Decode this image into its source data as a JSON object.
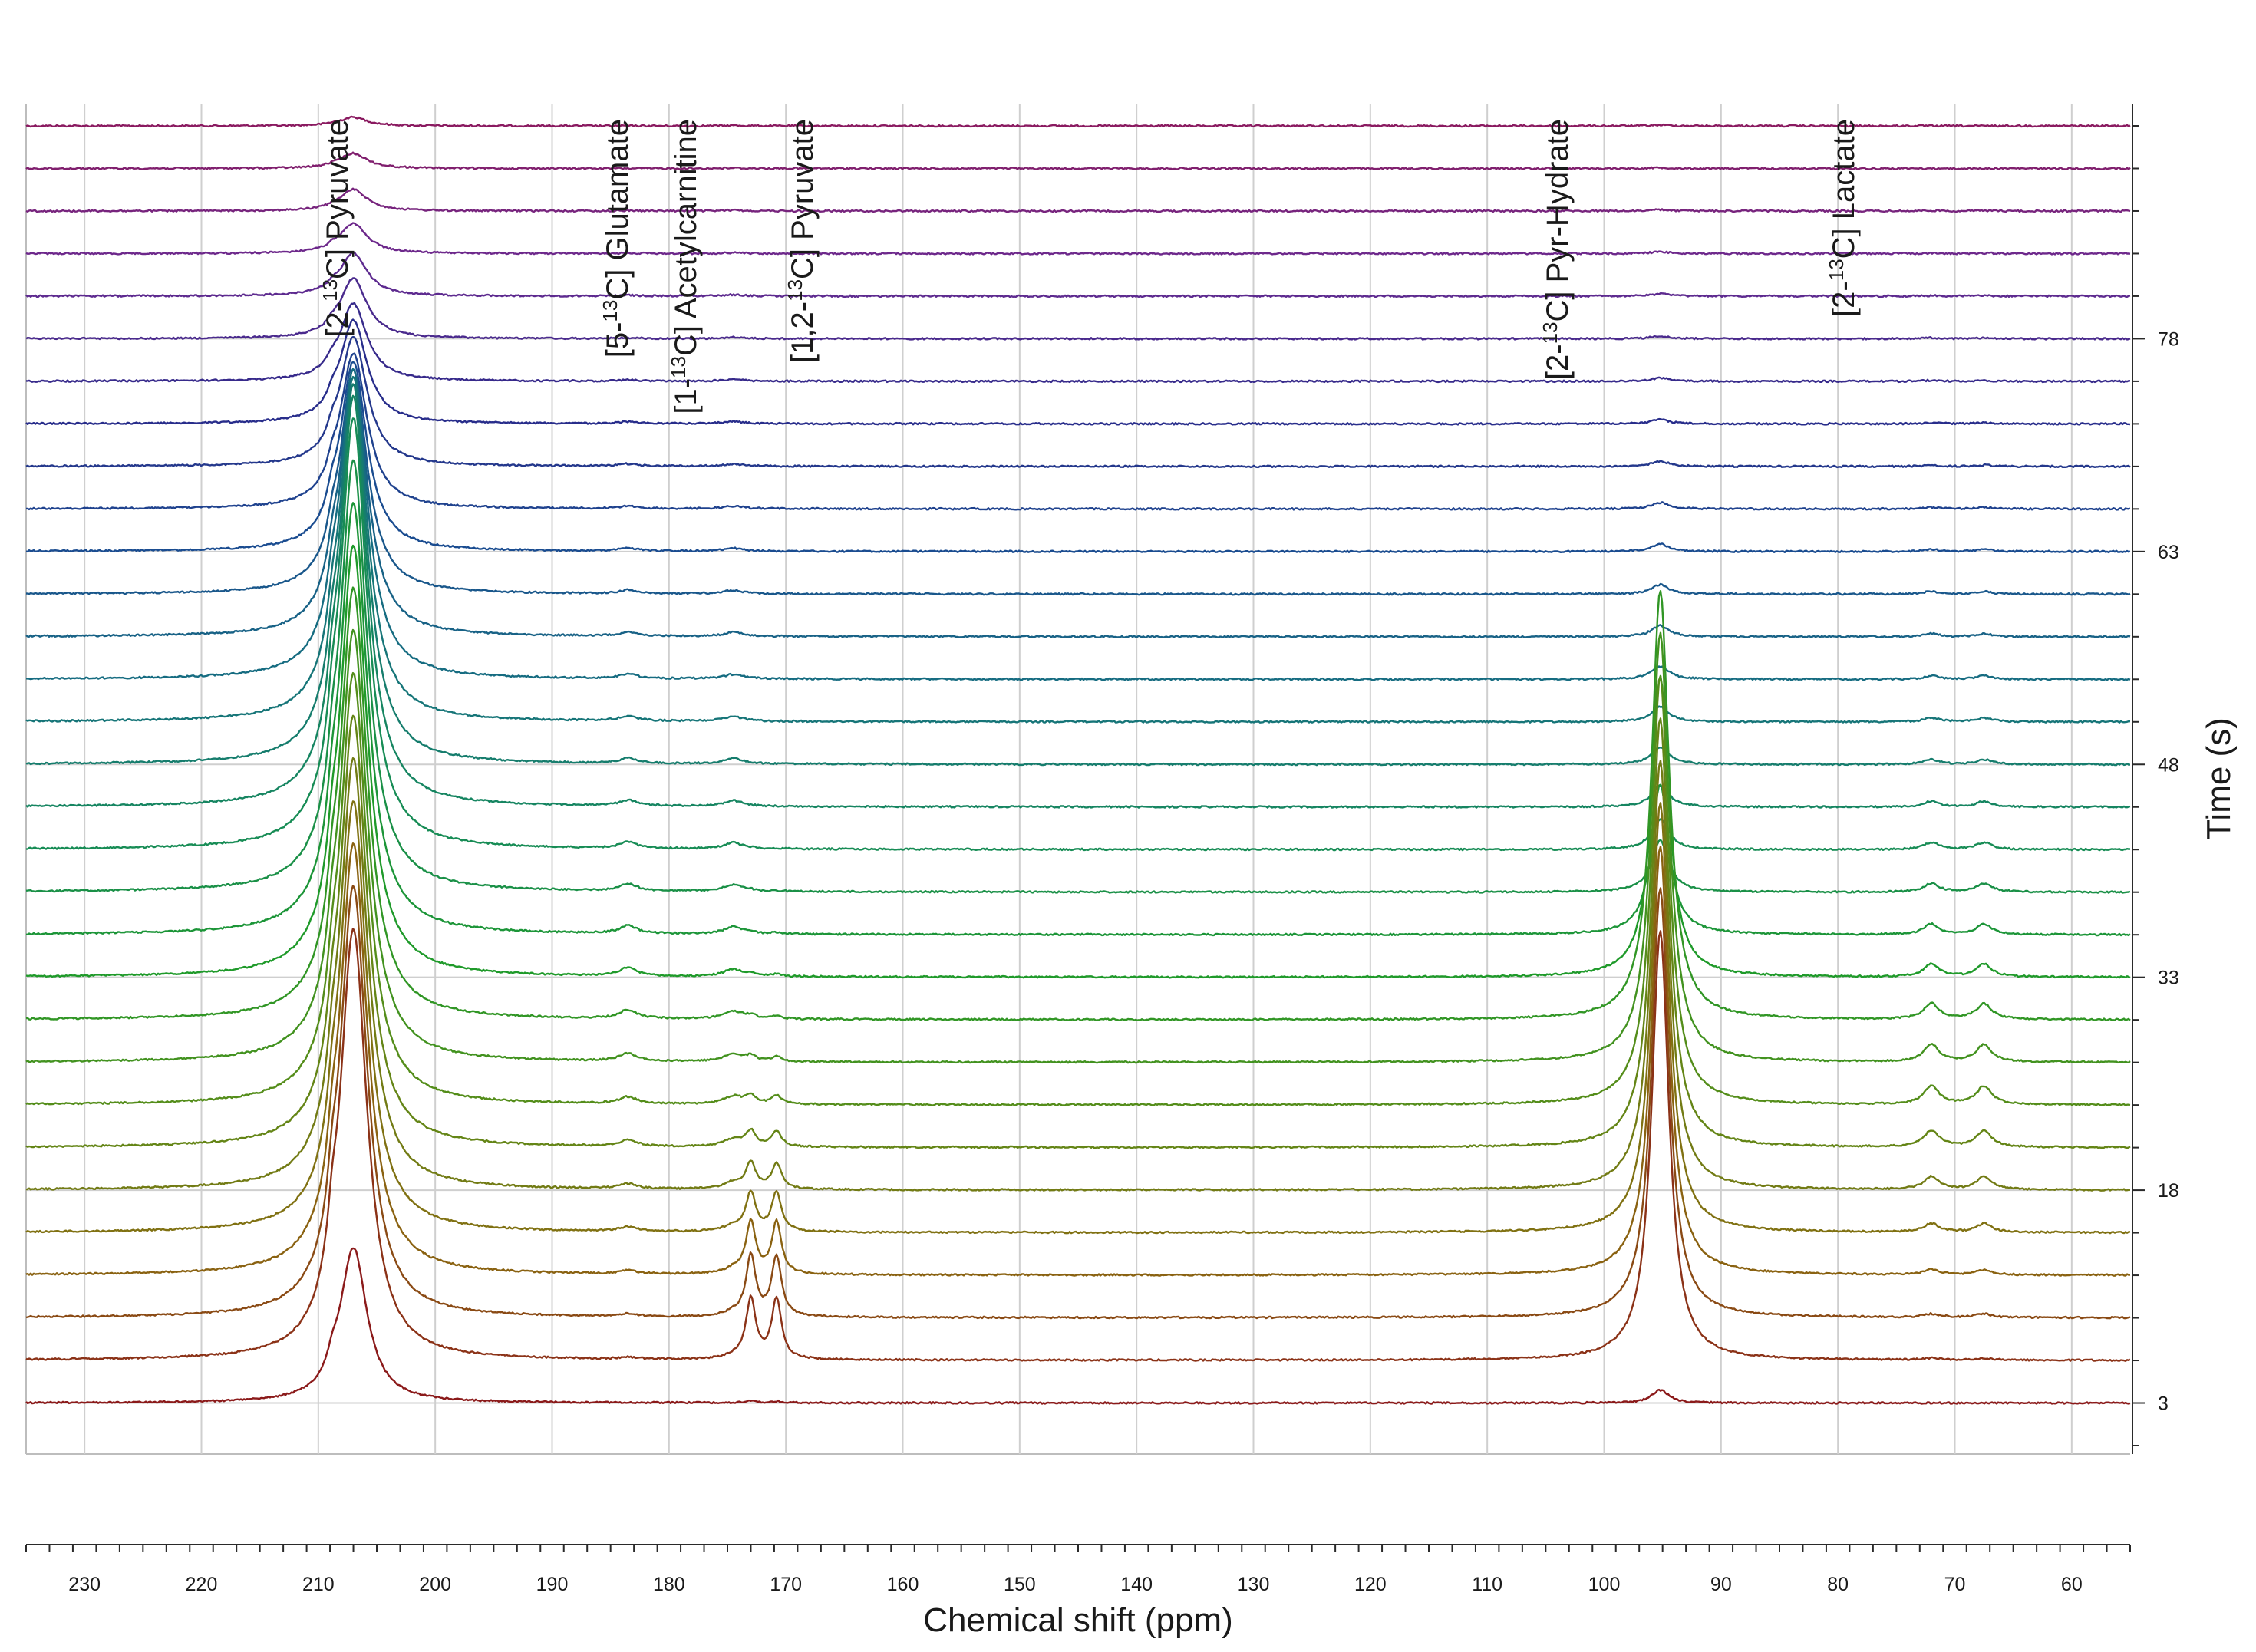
{
  "chart_data": {
    "type": "line",
    "subtype": "stacked-spectra-waterfall",
    "xlabel": "Chemical shift (ppm)",
    "ylabel": "Time (s)",
    "xlim": [
      235,
      55
    ],
    "x_reversed": true,
    "x_ticks": [
      230,
      220,
      210,
      200,
      190,
      180,
      170,
      160,
      150,
      140,
      130,
      120,
      110,
      100,
      90,
      80,
      70,
      60
    ],
    "x_tick_labels": [
      "230",
      "220",
      "210",
      "200",
      "190",
      "180",
      "170",
      "160",
      "150",
      "140",
      "130",
      "120",
      "110",
      "100",
      "90",
      "80",
      "70",
      "60"
    ],
    "ylim": [
      0,
      93
    ],
    "y_ticks": [
      3,
      18,
      33,
      48,
      63,
      78
    ],
    "y_tick_labels": [
      "3",
      "18",
      "33",
      "48",
      "63",
      "78"
    ],
    "grid": true,
    "legend": "none",
    "n_spectra": 31,
    "spectrum_times_s": [
      3,
      6,
      9,
      12,
      15,
      18,
      21,
      24,
      27,
      30,
      33,
      36,
      39,
      42,
      45,
      48,
      51,
      54,
      57,
      60,
      63,
      66,
      69,
      72,
      75,
      78,
      81,
      84,
      87,
      90,
      93
    ],
    "color_scale": {
      "stops": [
        "#8b1a1a",
        "#8a6a10",
        "#5a8c18",
        "#1f9a2a",
        "#168a5a",
        "#16707f",
        "#1a4c90",
        "#2a2a8a",
        "#6a2a90",
        "#8a1a60"
      ]
    },
    "series_relative_amplitudes": {
      "pyruvate_2_13C": [
        0.36,
        1.0,
        1.0,
        1.0,
        1.0,
        1.0,
        1.0,
        1.0,
        1.0,
        1.0,
        1.0,
        1.0,
        1.0,
        1.0,
        0.95,
        0.88,
        0.8,
        0.72,
        0.62,
        0.52,
        0.44,
        0.36,
        0.3,
        0.24,
        0.18,
        0.14,
        0.1,
        0.07,
        0.05,
        0.035,
        0.02
      ],
      "glutamate_5_13C": [
        0,
        0.004,
        0.006,
        0.008,
        0.01,
        0.012,
        0.014,
        0.016,
        0.018,
        0.02,
        0.019,
        0.018,
        0.016,
        0.014,
        0.013,
        0.012,
        0.011,
        0.01,
        0.009,
        0.008,
        0.007,
        0.006,
        0.005,
        0.004,
        0.003,
        0.002,
        0.002,
        0.001,
        0.001,
        0.0,
        0.0
      ],
      "acetylcarnitine_1_13C": [
        0,
        0.006,
        0.008,
        0.01,
        0.012,
        0.015,
        0.017,
        0.018,
        0.018,
        0.018,
        0.017,
        0.016,
        0.015,
        0.014,
        0.013,
        0.012,
        0.011,
        0.01,
        0.009,
        0.008,
        0.007,
        0.006,
        0.005,
        0.005,
        0.004,
        0.003,
        0.003,
        0.002,
        0.002,
        0.001,
        0.001
      ],
      "pyruvate_1_2_13C": [
        0.004,
        0.14,
        0.14,
        0.12,
        0.09,
        0.06,
        0.035,
        0.02,
        0.012,
        0.008,
        0.005,
        0.003,
        0.002,
        0.001,
        0,
        0,
        0,
        0,
        0,
        0,
        0,
        0,
        0,
        0,
        0,
        0,
        0,
        0,
        0,
        0,
        0
      ],
      "pyruvate_hydrate_2_13C": [
        0.03,
        1.0,
        1.0,
        1.0,
        1.0,
        1.0,
        1.0,
        1.0,
        1.0,
        1.0,
        0.7,
        0.35,
        0.12,
        0.07,
        0.05,
        0.04,
        0.035,
        0.03,
        0.026,
        0.022,
        0.018,
        0.015,
        0.012,
        0.01,
        0.008,
        0.006,
        0.005,
        0.004,
        0.003,
        0.002,
        0.002
      ],
      "lactate_2_13C": [
        0,
        0.004,
        0.008,
        0.012,
        0.02,
        0.03,
        0.038,
        0.042,
        0.04,
        0.036,
        0.03,
        0.024,
        0.02,
        0.016,
        0.013,
        0.011,
        0.009,
        0.008,
        0.007,
        0.006,
        0.005,
        0.004,
        0.003,
        0.003,
        0.002,
        0.002,
        0.001,
        0.001,
        0.001,
        0.0,
        0.0
      ]
    },
    "peaks": [
      {
        "key": "pyruvate_2_13C",
        "ppm": 207,
        "width_ppm": 1.4,
        "label_prefix": "[2-",
        "label_sup": "13",
        "label_suffix": "C] Pyruvate"
      },
      {
        "key": "glutamate_5_13C",
        "ppm": 183.5,
        "width_ppm": 0.9,
        "label_prefix": "[5-",
        "label_sup": "13",
        "label_suffix": "C] Glutamate"
      },
      {
        "key": "acetylcarnitine_1_13C",
        "ppm": 174.5,
        "width_ppm": 1.0,
        "label_prefix": "[1-",
        "label_sup": "13",
        "label_suffix": "C] Acetylcarnitine"
      },
      {
        "key": "pyruvate_1_2_13C",
        "ppm": [
          173,
          170.8
        ],
        "width_ppm": 0.5,
        "label_prefix": "[1,2-",
        "label_sup": "13",
        "label_suffix": "C] Pyruvate"
      },
      {
        "key": "pyruvate_hydrate_2_13C",
        "ppm": 95.2,
        "width_ppm": 0.9,
        "label_prefix": "[2-",
        "label_sup": "13",
        "label_suffix": "C] Pyr-Hydrate"
      },
      {
        "key": "lactate_2_13C",
        "ppm": [
          72,
          67.5
        ],
        "width_ppm": 0.8,
        "label_prefix": "[2-",
        "label_sup": "13",
        "label_suffix": "C] Lactate"
      }
    ]
  }
}
